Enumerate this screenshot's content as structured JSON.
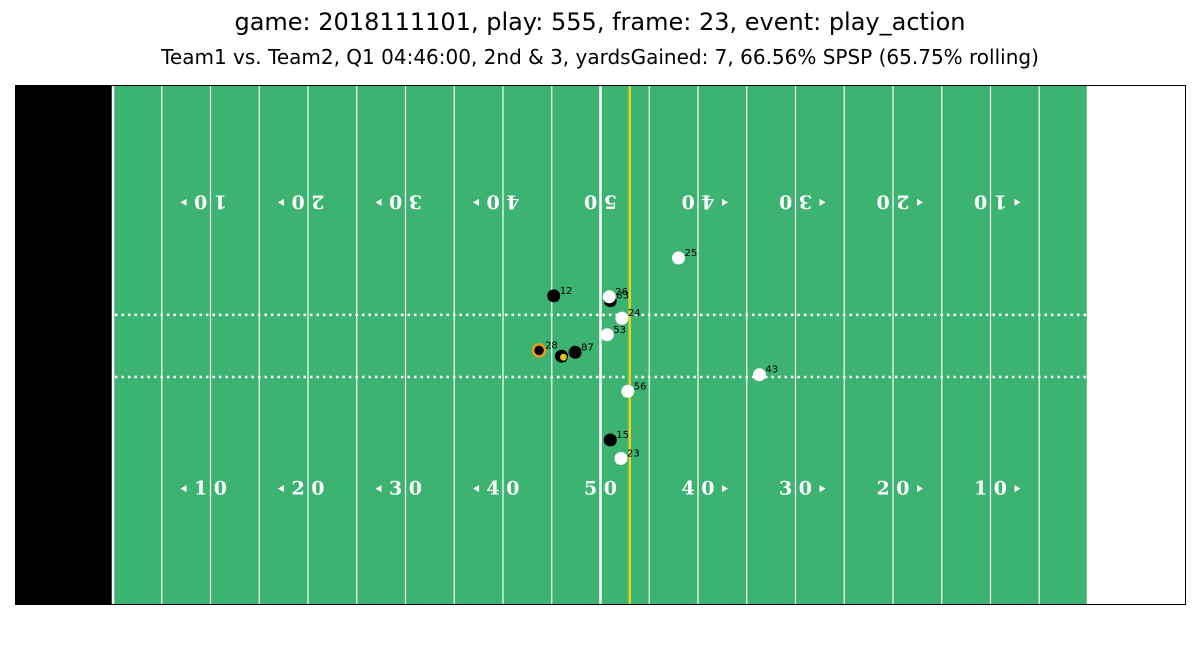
{
  "title": "game: 2018111101, play: 555, frame: 23, event: play_action",
  "subtitle": "Team1 vs. Team2, Q1 04:46:00, 2nd & 3, yardsGained: 7, 66.56% SPSP (65.75% rolling)",
  "colors": {
    "field": "#3cb371",
    "endzone_left": "#000000",
    "endzone_right": "#ffffff",
    "line_of_scrimmage": "#e8d21d",
    "offense": "#000000",
    "defense": "#ffffff",
    "ball_carrier": "#f29a1f",
    "football": "#e8c21a"
  },
  "chart_data": {
    "type": "scatter",
    "xlim": [
      0,
      120
    ],
    "ylim": [
      0,
      53.3
    ],
    "yard_numbers": [
      "1 0",
      "2 0",
      "3 0",
      "4 0",
      "5 0",
      "4 0",
      "3 0",
      "2 0",
      "1 0"
    ],
    "line_of_scrimmage_x": 63,
    "hash_y": [
      23.36,
      29.74
    ],
    "players": [
      {
        "jersey": "12",
        "x": 55.2,
        "y": 31.7,
        "team": "offense"
      },
      {
        "jersey": "83",
        "x": 61.0,
        "y": 31.2,
        "team": "offense"
      },
      {
        "jersey": "87",
        "x": 57.4,
        "y": 25.9,
        "team": "offense"
      },
      {
        "jersey": "15",
        "x": 61.0,
        "y": 16.9,
        "team": "offense"
      },
      {
        "jersey": "28",
        "x": 53.7,
        "y": 26.1,
        "team": "offense",
        "ball_carrier": true
      },
      {
        "jersey": "",
        "x": 56.0,
        "y": 25.5,
        "team": "offense"
      },
      {
        "jersey": "25",
        "x": 68.0,
        "y": 35.6,
        "team": "defense"
      },
      {
        "jersey": "26",
        "x": 60.9,
        "y": 31.6,
        "team": "defense"
      },
      {
        "jersey": "24",
        "x": 62.2,
        "y": 29.4,
        "team": "defense"
      },
      {
        "jersey": "53",
        "x": 60.7,
        "y": 27.7,
        "team": "defense"
      },
      {
        "jersey": "43",
        "x": 76.3,
        "y": 23.6,
        "team": "defense"
      },
      {
        "jersey": "56",
        "x": 62.8,
        "y": 21.9,
        "team": "defense"
      },
      {
        "jersey": "23",
        "x": 62.1,
        "y": 15.0,
        "team": "defense"
      }
    ],
    "football": {
      "x": 56.2,
      "y": 25.4
    }
  }
}
